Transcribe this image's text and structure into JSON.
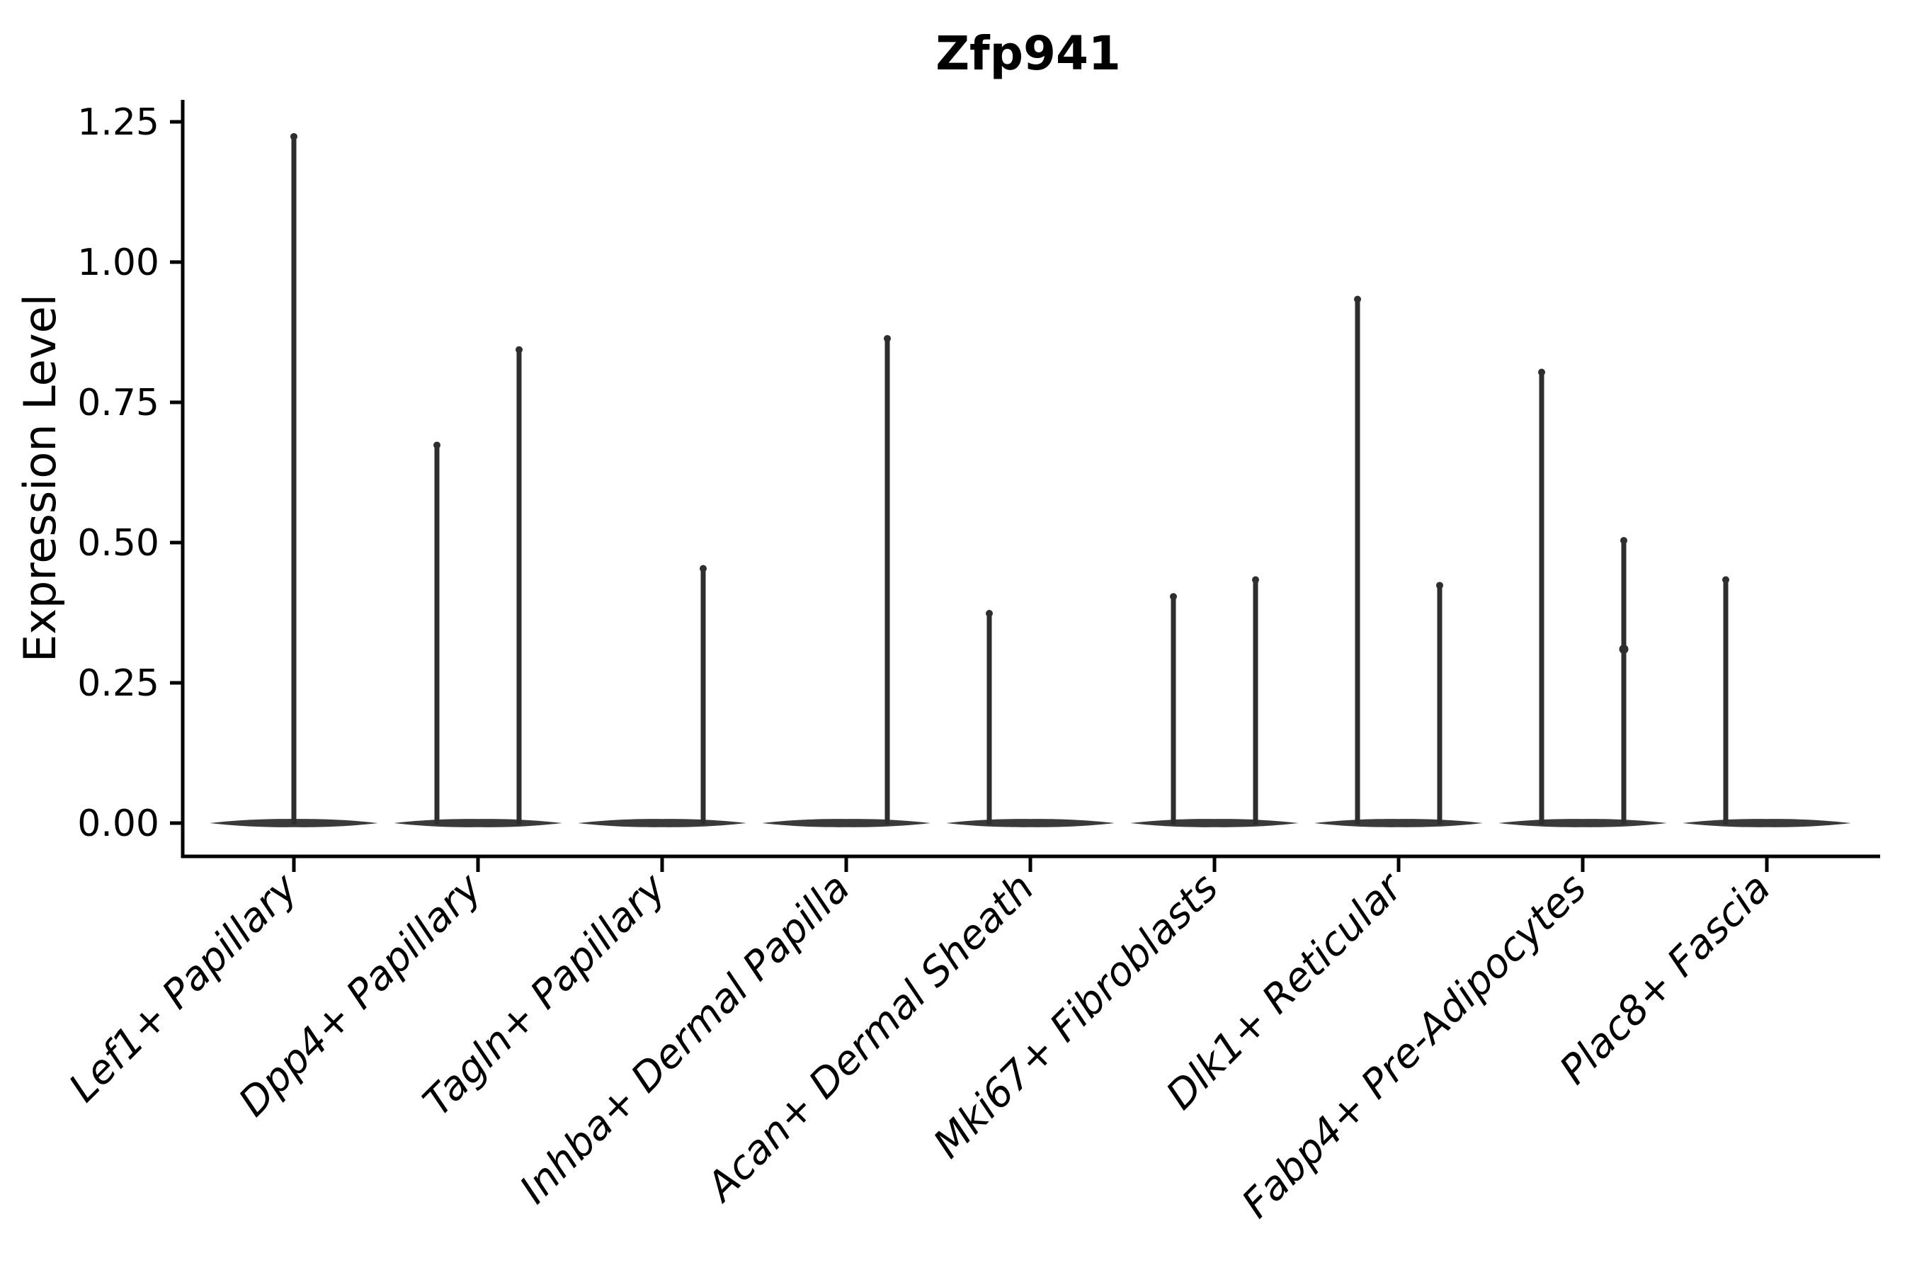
{
  "title": "Zfp941",
  "chart_data": {
    "type": "violin",
    "title": "Zfp941",
    "ylabel": "Expression Level",
    "xlabel": "",
    "ylim": [
      0,
      1.25
    ],
    "grid": false,
    "legend": "none",
    "baseline_value": 0,
    "yticks": [
      {
        "label": "0.00",
        "value": 0.0
      },
      {
        "label": "0.25",
        "value": 0.25
      },
      {
        "label": "0.50",
        "value": 0.5
      },
      {
        "label": "0.75",
        "value": 0.75
      },
      {
        "label": "1.00",
        "value": 1.0
      },
      {
        "label": "1.25",
        "value": 1.25
      }
    ],
    "categories": [
      {
        "label": "Lef1+ Papillary",
        "spikes": [
          {
            "position": "center",
            "value": 1.23
          }
        ],
        "knots": []
      },
      {
        "label": "Dpp4+ Papillary",
        "spikes": [
          {
            "position": "left",
            "value": 0.68
          },
          {
            "position": "right",
            "value": 0.85
          }
        ],
        "knots": []
      },
      {
        "label": "Tagln+ Papillary",
        "spikes": [
          {
            "position": "right",
            "value": 0.46
          }
        ],
        "knots": []
      },
      {
        "label": "Inhba+ Dermal Papilla",
        "spikes": [
          {
            "position": "right",
            "value": 0.87
          }
        ],
        "knots": []
      },
      {
        "label": "Acan+ Dermal Sheath",
        "spikes": [
          {
            "position": "left",
            "value": 0.38
          }
        ],
        "knots": []
      },
      {
        "label": "Mki67+ Fibroblasts",
        "spikes": [
          {
            "position": "left",
            "value": 0.41
          },
          {
            "position": "right",
            "value": 0.44
          }
        ],
        "knots": []
      },
      {
        "label": "Dlk1+ Reticular",
        "spikes": [
          {
            "position": "left",
            "value": 0.94
          },
          {
            "position": "right",
            "value": 0.43
          }
        ],
        "knots": []
      },
      {
        "label": "Fabp4+ Pre-Adipocytes",
        "spikes": [
          {
            "position": "left",
            "value": 0.81
          },
          {
            "position": "right",
            "value": 0.51
          }
        ],
        "knots": [
          {
            "position": "right",
            "value": 0.31
          }
        ]
      },
      {
        "label": "Plac8+ Fascia",
        "spikes": [
          {
            "position": "left",
            "value": 0.44
          }
        ],
        "knots": []
      }
    ],
    "colors": {
      "axis": "#000000",
      "spike": "#2e2e2e",
      "violin_base": "#3a3a3a"
    }
  }
}
